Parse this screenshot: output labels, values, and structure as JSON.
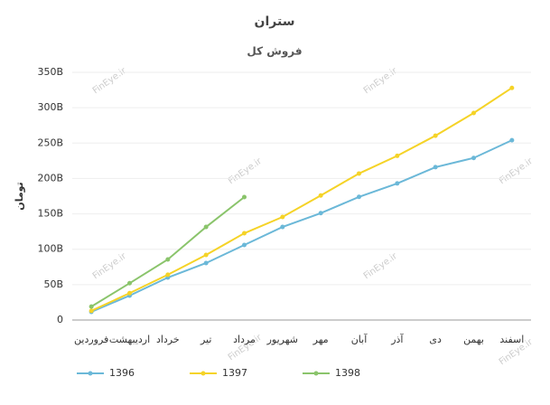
{
  "chart_data": {
    "type": "line",
    "title": "ستران",
    "subtitle": "فروش کل",
    "y_label": "تومان",
    "watermark": "FinEye.ir",
    "categories": [
      "فروردین",
      "اردیبهشت",
      "خرداد",
      "تیر",
      "مرداد",
      "شهریور",
      "مهر",
      "آبان",
      "آذر",
      "دی",
      "بهمن",
      "اسفند"
    ],
    "series": [
      {
        "name": "1396",
        "color": "#6bb8d8",
        "values": [
          11.5,
          34.5,
          60,
          80.5,
          106,
          131.5,
          151,
          174,
          193,
          216,
          229,
          254
        ]
      },
      {
        "name": "1397",
        "color": "#f5d327",
        "values": [
          13,
          38,
          64,
          92,
          122.6,
          145.6,
          176,
          207,
          232,
          260.5,
          292.5,
          328
        ]
      },
      {
        "name": "1398",
        "color": "#8ac46b",
        "values": [
          19,
          52,
          85.6,
          131.5,
          173.7,
          null,
          null,
          null,
          null,
          null,
          null,
          null
        ]
      }
    ],
    "ylim": [
      0,
      350
    ],
    "yticks": [
      0,
      {
        "value": 50,
        "label": "50B"
      },
      {
        "value": 100,
        "label": "100B"
      },
      {
        "value": 150,
        "label": "150B"
      },
      {
        "value": 200,
        "label": "200B"
      },
      {
        "value": 250,
        "label": "250B"
      },
      {
        "value": 300,
        "label": "300B"
      },
      {
        "value": 350,
        "label": "350B"
      }
    ],
    "grid": true
  }
}
